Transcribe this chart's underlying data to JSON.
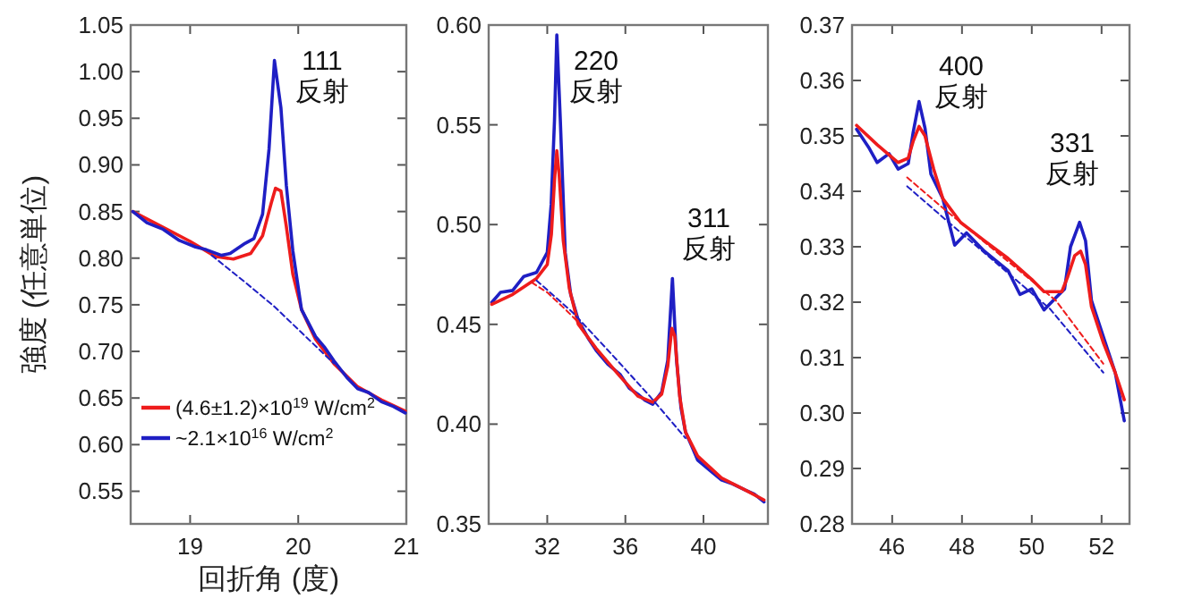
{
  "chart_data": [
    {
      "type": "line",
      "ylabel": "強度 (任意単位)",
      "xlabel": "回折角 (度)",
      "xlim": [
        18.45,
        21
      ],
      "ylim": [
        0.515,
        1.05
      ],
      "xticks": [
        19,
        20,
        21
      ],
      "yticks": [
        0.55,
        {
          "value": 0.6,
          "label": "0.60"
        },
        0.65,
        {
          "value": 0.7,
          "label": "0.70"
        },
        0.75,
        {
          "value": 0.8,
          "label": "0.80"
        },
        0.85,
        {
          "value": 0.9,
          "label": "0.90"
        },
        0.95,
        {
          "value": 1.0,
          "label": "1.00"
        },
        1.05
      ],
      "legend": "bottom left",
      "annotations": [
        "111 反射"
      ],
      "series": [
        {
          "name": "(4.6±1.2)×10$^{19}$ W/cm$^{2}$",
          "color": "#ee1c1c",
          "x": [
            18.47,
            19.0,
            19.23,
            19.4,
            19.56,
            19.67,
            19.75,
            19.79,
            19.84,
            19.89,
            19.95,
            20.03,
            20.16,
            20.33,
            20.55,
            20.77,
            20.99
          ],
          "values": [
            0.85,
            0.818,
            0.802,
            0.799,
            0.805,
            0.824,
            0.859,
            0.875,
            0.872,
            0.834,
            0.783,
            0.745,
            0.713,
            0.687,
            0.662,
            0.648,
            0.636
          ]
        },
        {
          "name": "~2.1×10$^{16}$ W/cm$^{2}$",
          "color": "#1f1fc4",
          "x": [
            18.47,
            18.6,
            18.75,
            18.9,
            19.05,
            19.15,
            19.29,
            19.37,
            19.51,
            19.59,
            19.67,
            19.73,
            19.78,
            19.84,
            19.89,
            19.95,
            20.03,
            20.16,
            20.24,
            20.33,
            20.45,
            20.55,
            20.65,
            20.77,
            20.88,
            20.99
          ],
          "values": [
            0.85,
            0.838,
            0.831,
            0.819,
            0.812,
            0.809,
            0.803,
            0.805,
            0.816,
            0.821,
            0.847,
            0.917,
            1.012,
            0.961,
            0.878,
            0.808,
            0.745,
            0.716,
            0.705,
            0.69,
            0.672,
            0.66,
            0.656,
            0.646,
            0.641,
            0.634
          ]
        },
        {
          "color": "#1f1fc4",
          "line_style": "dashed",
          "x": [
            19.2,
            19.5,
            19.78,
            20.05,
            20.33
          ],
          "values": [
            0.803,
            0.775,
            0.748,
            0.718,
            0.687
          ]
        }
      ]
    },
    {
      "type": "line",
      "xlim": [
        29,
        43.3
      ],
      "ylim": [
        0.35,
        0.6
      ],
      "xticks": [
        32,
        36,
        40
      ],
      "yticks": [
        0.35,
        {
          "value": 0.4,
          "label": "0.40"
        },
        0.45,
        {
          "value": 0.5,
          "label": "0.50"
        },
        0.55,
        {
          "value": 0.6,
          "label": "0.60"
        }
      ],
      "annotations": [
        "220 反射",
        "311 反射"
      ],
      "series": [
        {
          "color": "#1f1fc4",
          "x": [
            29.16,
            29.6,
            30.23,
            30.8,
            31.45,
            32.0,
            32.2,
            32.37,
            32.49,
            32.67,
            32.92,
            33.2,
            33.59,
            34.1,
            34.5,
            35.1,
            35.72,
            36.2,
            36.64,
            37.0,
            37.4,
            37.86,
            38.17,
            38.41,
            38.62,
            38.85,
            39.08,
            39.4,
            39.7,
            40.3,
            40.92,
            41.5,
            42.14,
            42.6,
            43.1
          ],
          "values": [
            0.461,
            0.466,
            0.467,
            0.474,
            0.476,
            0.486,
            0.51,
            0.552,
            0.595,
            0.552,
            0.486,
            0.465,
            0.452,
            0.443,
            0.437,
            0.43,
            0.425,
            0.418,
            0.415,
            0.412,
            0.41,
            0.416,
            0.432,
            0.473,
            0.432,
            0.408,
            0.396,
            0.389,
            0.382,
            0.377,
            0.372,
            0.37,
            0.367,
            0.365,
            0.361
          ]
        },
        {
          "color": "#ee1c1c",
          "x": [
            29.16,
            30.23,
            31.45,
            32.0,
            32.21,
            32.37,
            32.49,
            32.61,
            32.82,
            33.13,
            33.59,
            34.5,
            35.72,
            36.64,
            37.4,
            37.86,
            38.17,
            38.38,
            38.53,
            38.78,
            39.08,
            39.7,
            40.92,
            42.14,
            43.1
          ],
          "values": [
            0.46,
            0.465,
            0.473,
            0.48,
            0.495,
            0.522,
            0.537,
            0.525,
            0.492,
            0.468,
            0.45,
            0.438,
            0.424,
            0.414,
            0.411,
            0.415,
            0.429,
            0.448,
            0.444,
            0.414,
            0.396,
            0.384,
            0.373,
            0.367,
            0.362
          ]
        },
        {
          "color": "#1f1fc4",
          "line_style": "dashed",
          "x": [
            31.45,
            33.3,
            35.3,
            37.25,
            39.08
          ],
          "values": [
            0.472,
            0.456,
            0.435,
            0.414,
            0.393
          ]
        },
        {
          "color": "#ee1c1c",
          "line_style": "dashed",
          "x": [
            31.2,
            32.0,
            32.98,
            33.8
          ],
          "values": [
            0.471,
            0.466,
            0.457,
            0.449
          ]
        }
      ]
    },
    {
      "type": "line",
      "xlim": [
        44.85,
        52.8
      ],
      "ylim": [
        0.28,
        0.37
      ],
      "xticks": [
        46,
        48,
        50,
        52
      ],
      "yticks": [
        0.28,
        0.29,
        {
          "value": 0.3,
          "label": "0.30"
        },
        0.31,
        0.32,
        0.33,
        0.34,
        0.35,
        0.36,
        0.37
      ],
      "annotations": [
        "400 反射",
        "331 反射"
      ],
      "series": [
        {
          "color": "#1f1fc4",
          "x": [
            44.98,
            45.32,
            45.57,
            45.91,
            46.17,
            46.46,
            46.6,
            46.77,
            46.94,
            47.11,
            47.45,
            47.79,
            48.13,
            48.64,
            49.32,
            49.66,
            50.0,
            50.35,
            50.69,
            50.94,
            51.11,
            51.37,
            51.54,
            51.71,
            52.05,
            52.39,
            52.65
          ],
          "values": [
            0.3512,
            0.348,
            0.3452,
            0.3468,
            0.344,
            0.345,
            0.3506,
            0.3562,
            0.3514,
            0.3431,
            0.3387,
            0.3303,
            0.3325,
            0.3292,
            0.3257,
            0.3214,
            0.3224,
            0.3186,
            0.3208,
            0.3224,
            0.33,
            0.3344,
            0.3311,
            0.3203,
            0.3138,
            0.3073,
            0.2986
          ]
        },
        {
          "color": "#ee1c1c",
          "x": [
            44.98,
            45.57,
            46.17,
            46.46,
            46.6,
            46.77,
            46.94,
            47.19,
            47.45,
            47.96,
            48.64,
            49.32,
            50.0,
            50.35,
            50.86,
            51.03,
            51.23,
            51.4,
            51.54,
            51.71,
            52.05,
            52.39,
            52.65
          ],
          "values": [
            0.3519,
            0.3484,
            0.3452,
            0.346,
            0.349,
            0.3517,
            0.35,
            0.344,
            0.3387,
            0.3344,
            0.3311,
            0.3279,
            0.3241,
            0.3219,
            0.3219,
            0.3246,
            0.3284,
            0.3292,
            0.3268,
            0.3192,
            0.3127,
            0.3073,
            0.3024
          ]
        },
        {
          "color": "#1f1fc4",
          "line_style": "dashed",
          "x": [
            46.43,
            47.62,
            50.52,
            52.05
          ],
          "values": [
            0.3409,
            0.3344,
            0.3188,
            0.3073
          ]
        },
        {
          "color": "#ee1c1c",
          "line_style": "dashed",
          "x": [
            46.43,
            47.45,
            50.69,
            52.05
          ],
          "values": [
            0.3425,
            0.337,
            0.3203,
            0.3089
          ]
        }
      ]
    }
  ]
}
